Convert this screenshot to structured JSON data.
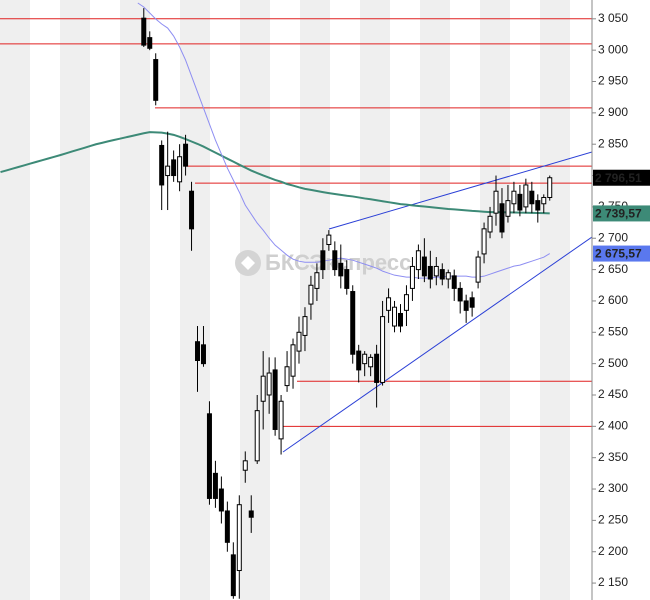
{
  "chart_data": {
    "type": "candlestick",
    "watermark": "БКСЭкспресс",
    "ylim": [
      2123,
      3080
    ],
    "yticks": [
      {
        "value": 2150,
        "label": "2 150"
      },
      {
        "value": 2200,
        "label": "2 200"
      },
      {
        "value": 2250,
        "label": "2 250"
      },
      {
        "value": 2300,
        "label": "2 300"
      },
      {
        "value": 2350,
        "label": "2 350"
      },
      {
        "value": 2400,
        "label": "2 400"
      },
      {
        "value": 2450,
        "label": "2 450"
      },
      {
        "value": 2500,
        "label": "2 500"
      },
      {
        "value": 2550,
        "label": "2 550"
      },
      {
        "value": 2600,
        "label": "2 600"
      },
      {
        "value": 2650,
        "label": "2 650"
      },
      {
        "value": 2700,
        "label": "2 700"
      },
      {
        "value": 2750,
        "label": "2 750"
      },
      {
        "value": 2800,
        "label": "2 800"
      },
      {
        "value": 2850,
        "label": "2 850"
      },
      {
        "value": 2900,
        "label": "2 900"
      },
      {
        "value": 2950,
        "label": "2 950"
      },
      {
        "value": 3000,
        "label": "3 000"
      },
      {
        "value": 3050,
        "label": "3 050"
      }
    ],
    "rising_color": "#ffffff",
    "falling_color": "#000000",
    "candles": {
      "open": [
        null,
        null,
        null,
        null,
        null,
        null,
        null,
        null,
        null,
        null,
        null,
        null,
        null,
        null,
        null,
        null,
        null,
        null,
        null,
        null,
        null,
        null,
        null,
        null,
        3051,
        3020,
        2985,
        2848,
        2800,
        2825,
        2790,
        2850,
        2775,
        2535,
        2530,
        2420,
        2325,
        2300,
        2265,
        2195,
        2170,
        2330,
        2265,
        2345,
        2440,
        2450,
        2490,
        2380,
        2465,
        2480,
        2520,
        2545,
        2595,
        2620,
        2680,
        2690,
        2680,
        2660,
        2650,
        2615,
        2520,
        2500,
        2495,
        2515,
        2470,
        2585,
        2560,
        2580,
        2585,
        2620,
        2650,
        2670,
        2655,
        2640,
        2650,
        2635,
        2640,
        2620,
        2600,
        2605,
        2630,
        2675,
        2710,
        2740,
        2755,
        2735,
        2755,
        2770,
        2750,
        2775,
        2760,
        2755,
        2765
      ],
      "high": [
        null,
        null,
        null,
        null,
        null,
        null,
        null,
        null,
        null,
        null,
        null,
        null,
        null,
        null,
        null,
        null,
        null,
        null,
        null,
        null,
        null,
        null,
        null,
        null,
        3067,
        3030,
        2995,
        2856,
        2870,
        2840,
        2850,
        2865,
        2790,
        2560,
        2560,
        2440,
        2345,
        2320,
        2280,
        2215,
        2290,
        2360,
        2290,
        2450,
        2520,
        2510,
        2510,
        2450,
        2520,
        2540,
        2575,
        2590,
        2640,
        2660,
        2700,
        2713,
        2695,
        2690,
        2665,
        2625,
        2530,
        2520,
        2515,
        2530,
        2600,
        2620,
        2600,
        2595,
        2625,
        2670,
        2690,
        2700,
        2680,
        2670,
        2660,
        2650,
        2650,
        2630,
        2610,
        2615,
        2680,
        2725,
        2750,
        2800,
        2780,
        2785,
        2790,
        2785,
        2795,
        2790,
        2770,
        2770,
        2800
      ],
      "low": [
        null,
        null,
        null,
        null,
        null,
        null,
        null,
        null,
        null,
        null,
        null,
        null,
        null,
        null,
        null,
        null,
        null,
        null,
        null,
        null,
        null,
        null,
        null,
        null,
        3005,
        3000,
        2912,
        2745,
        2745,
        2790,
        2775,
        2800,
        2680,
        2455,
        2495,
        2275,
        2270,
        2245,
        2200,
        2125,
        2125,
        2310,
        2230,
        2340,
        2395,
        2420,
        2385,
        2355,
        2455,
        2460,
        2500,
        2520,
        2570,
        2600,
        2635,
        2680,
        2640,
        2620,
        2610,
        2500,
        2470,
        2480,
        2480,
        2430,
        2465,
        2565,
        2550,
        2550,
        2560,
        2600,
        2635,
        2630,
        2620,
        2625,
        2625,
        2620,
        2600,
        2580,
        2565,
        2575,
        2620,
        2660,
        2700,
        2720,
        2700,
        2725,
        2740,
        2735,
        2740,
        2740,
        2725,
        2740,
        2760
      ],
      "close": [
        null,
        null,
        null,
        null,
        null,
        null,
        null,
        null,
        null,
        null,
        null,
        null,
        null,
        null,
        null,
        null,
        null,
        null,
        null,
        null,
        null,
        null,
        null,
        null,
        3008,
        3003,
        2920,
        2785,
        2815,
        2800,
        2830,
        2815,
        2715,
        2505,
        2500,
        2285,
        2285,
        2265,
        2215,
        2130,
        2275,
        2345,
        2255,
        2425,
        2480,
        2485,
        2395,
        2440,
        2495,
        2530,
        2550,
        2575,
        2625,
        2645,
        2650,
        2705,
        2650,
        2640,
        2620,
        2515,
        2490,
        2515,
        2510,
        2470,
        2575,
        2605,
        2590,
        2560,
        2610,
        2655,
        2680,
        2640,
        2635,
        2655,
        2635,
        2645,
        2620,
        2600,
        2585,
        2590,
        2670,
        2715,
        2735,
        2775,
        2710,
        2760,
        2775,
        2745,
        2785,
        2755,
        2745,
        2765,
        2796.51
      ]
    },
    "series": [
      {
        "color": "#3d8a77",
        "values": [
          2805.5,
          2808.2,
          2810.9,
          2813.6,
          2816.3,
          2819.1,
          2821.8,
          2824.5,
          2827.2,
          2829.9,
          2832.6,
          2835.5,
          2838.4,
          2841.2,
          2844.1,
          2847,
          2849.9,
          2852.1,
          2854.5,
          2856.7,
          2858.8,
          2861,
          2863.1,
          2865.3,
          2867.4,
          2869.2,
          2868.8,
          2868.4,
          2866.9,
          2864.9,
          2861.8,
          2858.2,
          2854.3,
          2850.5,
          2846.2,
          2841.4,
          2836.6,
          2831.8,
          2826.9,
          2822.2,
          2817.3,
          2812.7,
          2808,
          2803.9,
          2800.1,
          2796.6,
          2793,
          2790.2,
          2786.5,
          2784,
          2781.2,
          2778.8,
          2777.1,
          2775.3,
          2773.6,
          2772,
          2770.5,
          2769.1,
          2767.7,
          2766.7,
          2765.1,
          2763.5,
          2762.2,
          2760.6,
          2759,
          2757.5,
          2756,
          2754.4,
          2753.6,
          2752.5,
          2751.5,
          2750.6,
          2749.6,
          2748.7,
          2747.6,
          2746.6,
          2746,
          2745.2,
          2744.5,
          2743.7,
          2743.1,
          2742.3,
          2741.6,
          2741.6,
          2741.4,
          2741.2,
          2741,
          2740.8,
          2740.6,
          2740.4,
          2740.2,
          2740,
          2739.6
        ]
      },
      {
        "color": "#8e8ef2",
        "values": [
          null,
          null,
          null,
          null,
          null,
          null,
          null,
          null,
          null,
          null,
          null,
          null,
          null,
          null,
          null,
          null,
          null,
          null,
          null,
          null,
          null,
          null,
          null,
          3075.2,
          3068.8,
          3059.3,
          3049.7,
          3041.7,
          3035.3,
          3022.5,
          3005,
          2984.2,
          2958.7,
          2933.2,
          2907.6,
          2882.1,
          2856.6,
          2834.2,
          2811.9,
          2792.7,
          2773.6,
          2752.8,
          2738.5,
          2724.1,
          2712.9,
          2700.2,
          2689,
          2681,
          2673,
          2666.6,
          2663.4,
          2661.8,
          2661.8,
          2661.8,
          2663.4,
          2665,
          2666.6,
          2668.2,
          2666.6,
          2665,
          2661.8,
          2658.7,
          2655.5,
          2652.3,
          2647.5,
          2644.3,
          2641.1,
          2639.5,
          2637.9,
          2637.9,
          2636.3,
          2636.3,
          2636.3,
          2637.9,
          2637.9,
          2639.5,
          2639.5,
          2639.5,
          2639.5,
          2637.9,
          2637.9,
          2639.5,
          2642.7,
          2645.9,
          2649.1,
          2652.3,
          2655.5,
          2657.1,
          2660.3,
          2663.4,
          2666.6,
          2669.8,
          2675.6
        ]
      }
    ],
    "levels": [
      3050,
      3010,
      2908,
      2815,
      2788,
      2472,
      2400
    ],
    "level_color": "#e02020",
    "price_markers": [
      {
        "value": 2796.51,
        "label": "2 796,51",
        "color": "#000000"
      },
      {
        "value": 2739.57,
        "label": "2 739,57",
        "color": "#3d8a77"
      },
      {
        "value": 2675.57,
        "label": "2 675,57",
        "color": "#5a78ee"
      }
    ]
  }
}
